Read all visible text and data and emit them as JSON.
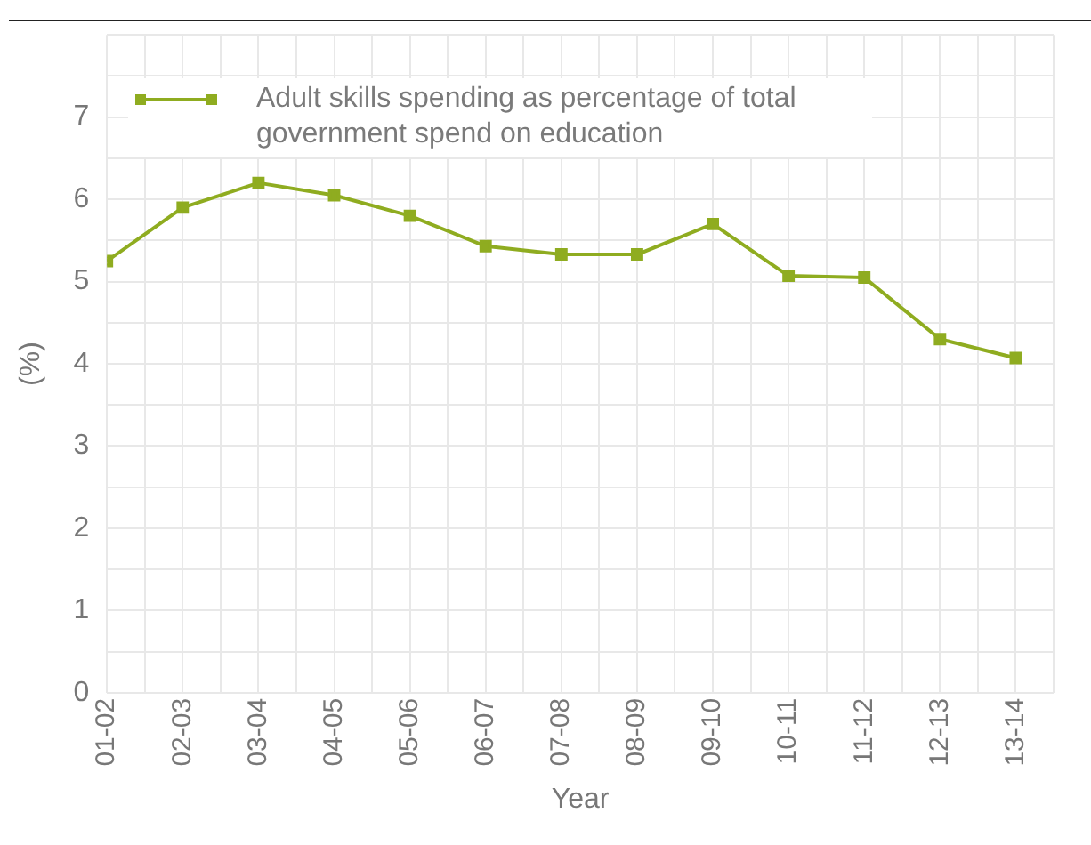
{
  "chart_data": {
    "type": "line",
    "xlabel": "Year",
    "ylabel": "(%)",
    "categories": [
      "01-02",
      "02-03",
      "03-04",
      "04-05",
      "05-06",
      "06-07",
      "07-08",
      "08-09",
      "09-10",
      "10-11",
      "11-12",
      "12-13",
      "13-14"
    ],
    "series": [
      {
        "name": "Adult skills spending as percentage of total government spend on education",
        "color": "#8fac20",
        "values": [
          5.25,
          5.9,
          6.2,
          6.05,
          5.8,
          5.43,
          5.33,
          5.33,
          5.7,
          5.07,
          5.05,
          4.3,
          4.07
        ]
      }
    ],
    "ylim": [
      0,
      8
    ],
    "yticks": [
      0,
      {
        "value": 0.5,
        "label": null
      },
      1,
      {
        "value": 1.5,
        "label": null
      },
      2,
      {
        "value": 2.5,
        "label": null
      },
      3,
      {
        "value": 3.5,
        "label": null
      },
      4,
      {
        "value": 4.5,
        "label": null
      },
      5,
      {
        "value": 5.5,
        "label": null
      },
      6,
      {
        "value": 6.5,
        "label": null
      },
      7,
      {
        "value": 7.5,
        "label": null
      },
      {
        "value": 8,
        "label": null
      }
    ],
    "grid": true,
    "legend": "top left",
    "marker": "square",
    "line_style": "solid"
  }
}
